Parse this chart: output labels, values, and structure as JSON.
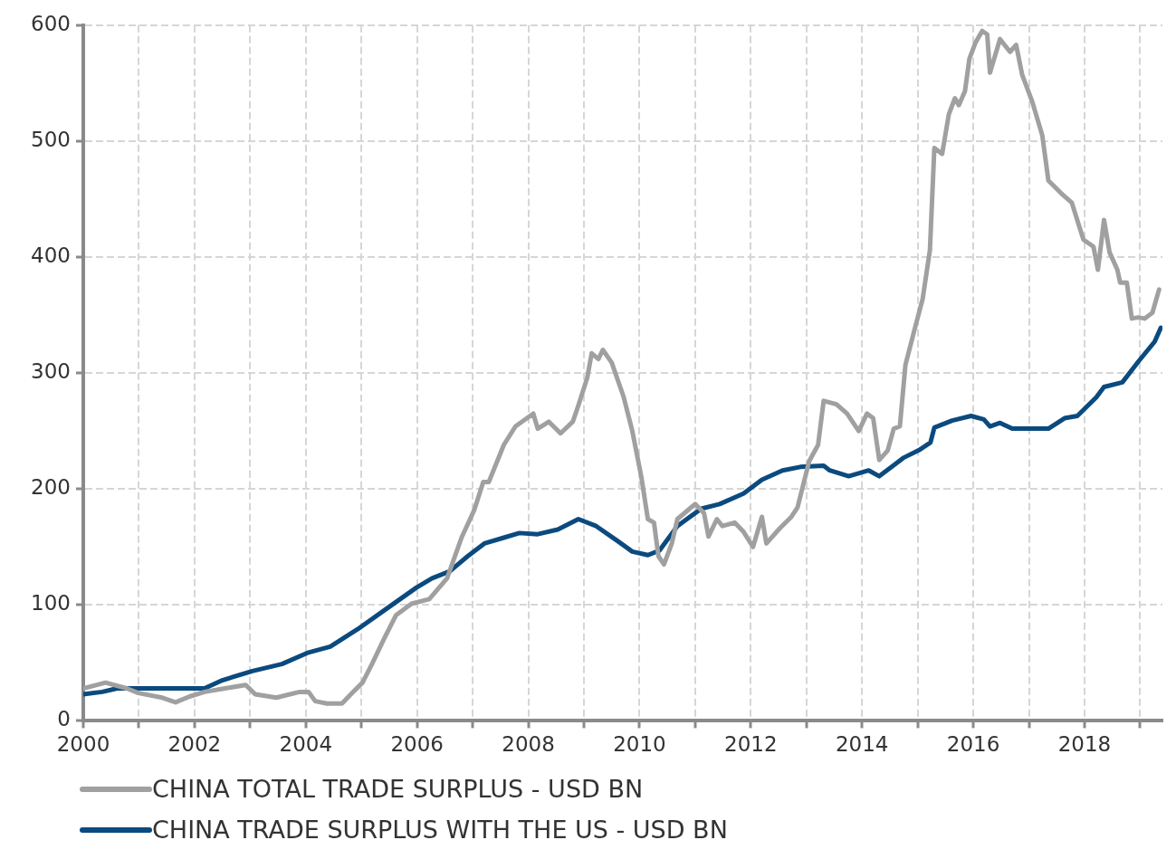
{
  "chart_data": {
    "type": "line",
    "xlim": [
      2000,
      2019.4
    ],
    "ylim": [
      0,
      600
    ],
    "xticks": [
      2000,
      {
        "value": 2001,
        "label": null
      },
      2002,
      {
        "value": 2003,
        "label": null
      },
      2004,
      {
        "value": 2005,
        "label": null
      },
      2006,
      {
        "value": 2007,
        "label": null
      },
      2008,
      {
        "value": 2009,
        "label": null
      },
      2010,
      {
        "value": 2011,
        "label": null
      },
      2012,
      {
        "value": 2013,
        "label": null
      },
      2014,
      {
        "value": 2015,
        "label": null
      },
      2016,
      {
        "value": 2017,
        "label": null
      },
      2018,
      {
        "value": 2019,
        "label": null
      }
    ],
    "yticks": [
      0,
      100,
      200,
      300,
      400,
      500,
      600
    ],
    "grid": true,
    "legend": "bottom left",
    "marker": "none",
    "line_style": "solid",
    "series": [
      {
        "name": "CHINA TOTAL TRADE SURPLUS - USD BN",
        "color": "#a0a0a0",
        "x": [
          2000,
          2000.4,
          2000.78,
          2000.99,
          2001.42,
          2001.66,
          2001.91,
          2002.18,
          2002.55,
          2002.92,
          2003.09,
          2003.47,
          2003.89,
          2004.05,
          2004.17,
          2004.38,
          2004.65,
          2004.81,
          2005.02,
          2005.19,
          2005.41,
          2005.62,
          2005.9,
          2006.22,
          2006.54,
          2006.8,
          2007.03,
          2007.19,
          2007.29,
          2007.56,
          2007.77,
          2008.09,
          2008.17,
          2008.37,
          2008.58,
          2008.8,
          2008.9,
          2009.06,
          2009.14,
          2009.26,
          2009.34,
          2009.5,
          2009.71,
          2009.87,
          2010.03,
          2010.15,
          2010.26,
          2010.34,
          2010.44,
          2010.58,
          2010.68,
          2011,
          2011.16,
          2011.24,
          2011.39,
          2011.49,
          2011.71,
          2011.87,
          2012.04,
          2012.2,
          2012.28,
          2012.52,
          2012.73,
          2012.84,
          2013.05,
          2013.21,
          2013.31,
          2013.54,
          2013.73,
          2013.94,
          2014.09,
          2014.2,
          2014.31,
          2014.46,
          2014.57,
          2014.68,
          2014.78,
          2014.93,
          2015.09,
          2015.22,
          2015.3,
          2015.44,
          2015.56,
          2015.67,
          2015.74,
          2015.85,
          2015.93,
          2016.04,
          2016.16,
          2016.25,
          2016.3,
          2016.48,
          2016.66,
          2016.77,
          2016.88,
          2017.06,
          2017.24,
          2017.35,
          2017.58,
          2017.77,
          2017.98,
          2018.16,
          2018.24,
          2018.35,
          2018.45,
          2018.59,
          2018.64,
          2018.76,
          2018.85,
          2018.97,
          2019.08,
          2019.22,
          2019.34
        ],
        "values": [
          28,
          33,
          28,
          24,
          20,
          16,
          21,
          25,
          28,
          31,
          23,
          20,
          25,
          25,
          17,
          15,
          15,
          23,
          33,
          49,
          71,
          91,
          101,
          105,
          123,
          158,
          182,
          206,
          206,
          238,
          254,
          265,
          252,
          258,
          248,
          258,
          272,
          296,
          317,
          312,
          320,
          309,
          280,
          250,
          211,
          174,
          171,
          142,
          135,
          153,
          174,
          187,
          179,
          159,
          174,
          168,
          171,
          163,
          150,
          176,
          153,
          166,
          176,
          184,
          224,
          238,
          276,
          273,
          265,
          250,
          265,
          261,
          225,
          233,
          252,
          254,
          307,
          335,
          364,
          406,
          494,
          489,
          523,
          537,
          531,
          543,
          571,
          585,
          595,
          592,
          559,
          588,
          577,
          583,
          557,
          534,
          505,
          466,
          455,
          447,
          415,
          409,
          389,
          432,
          404,
          389,
          378,
          378,
          347,
          348,
          347,
          352,
          372
        ]
      },
      {
        "name": "CHINA TRADE SURPLUS WITH THE US - USD BN",
        "color": "#0b4a7e",
        "x": [
          2000,
          2000.34,
          2000.61,
          2002.18,
          2002.5,
          2003.04,
          2003.57,
          2004.05,
          2004.44,
          2004.93,
          2005.46,
          2005.99,
          2006.27,
          2006.59,
          2006.91,
          2007.21,
          2007.56,
          2007.84,
          2008.17,
          2008.53,
          2008.9,
          2009.22,
          2009.61,
          2009.87,
          2010.15,
          2010.36,
          2010.68,
          2011.11,
          2011.44,
          2011.87,
          2012.2,
          2012.57,
          2012.89,
          2013.31,
          2013.42,
          2013.76,
          2014.12,
          2014.31,
          2014.75,
          2015.04,
          2015.23,
          2015.3,
          2015.62,
          2015.96,
          2016.19,
          2016.3,
          2016.48,
          2016.7,
          2017.35,
          2017.64,
          2017.87,
          2018.21,
          2018.35,
          2018.68,
          2018.97,
          2019.26,
          2019.37
        ],
        "values": [
          23,
          25,
          28,
          28,
          35,
          43,
          49,
          59,
          64,
          79,
          97,
          115,
          123,
          129,
          142,
          153,
          158,
          162,
          161,
          165,
          174,
          168,
          155,
          146,
          143,
          147,
          168,
          183,
          187,
          196,
          208,
          216,
          219,
          220,
          216,
          211,
          216,
          211,
          227,
          234,
          240,
          253,
          259,
          263,
          260,
          254,
          257,
          252,
          252,
          261,
          263,
          279,
          288,
          292,
          310,
          327,
          339
        ]
      }
    ]
  }
}
